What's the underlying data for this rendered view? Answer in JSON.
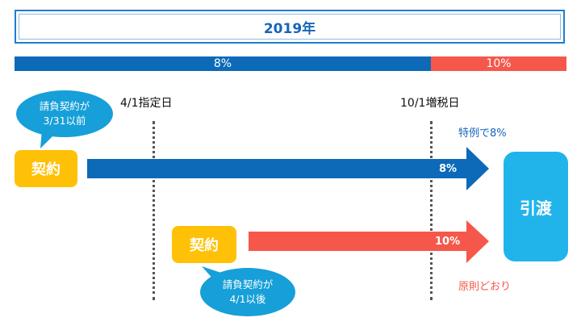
{
  "header": {
    "year": "2019年"
  },
  "rates": {
    "before": "8%",
    "after": "10%"
  },
  "dates": {
    "designated": "4/1指定日",
    "tax_increase": "10/1増税日"
  },
  "flow_early": {
    "bubble_line1": "請負契約が",
    "bubble_line2": "3/31以前",
    "contract_label": "契約",
    "rate_label": "8%",
    "note": "特例で8%"
  },
  "flow_late": {
    "bubble_line1": "請負契約が",
    "bubble_line2": "4/1以後",
    "contract_label": "契約",
    "rate_label": "10%",
    "note": "原則どおり"
  },
  "delivery": {
    "label": "引渡"
  },
  "colors": {
    "blue": "#0c6ab8",
    "red": "#f5584a",
    "yellow": "#ffc107",
    "light_blue": "#21b4ea",
    "bubble_blue": "#169fd8"
  }
}
